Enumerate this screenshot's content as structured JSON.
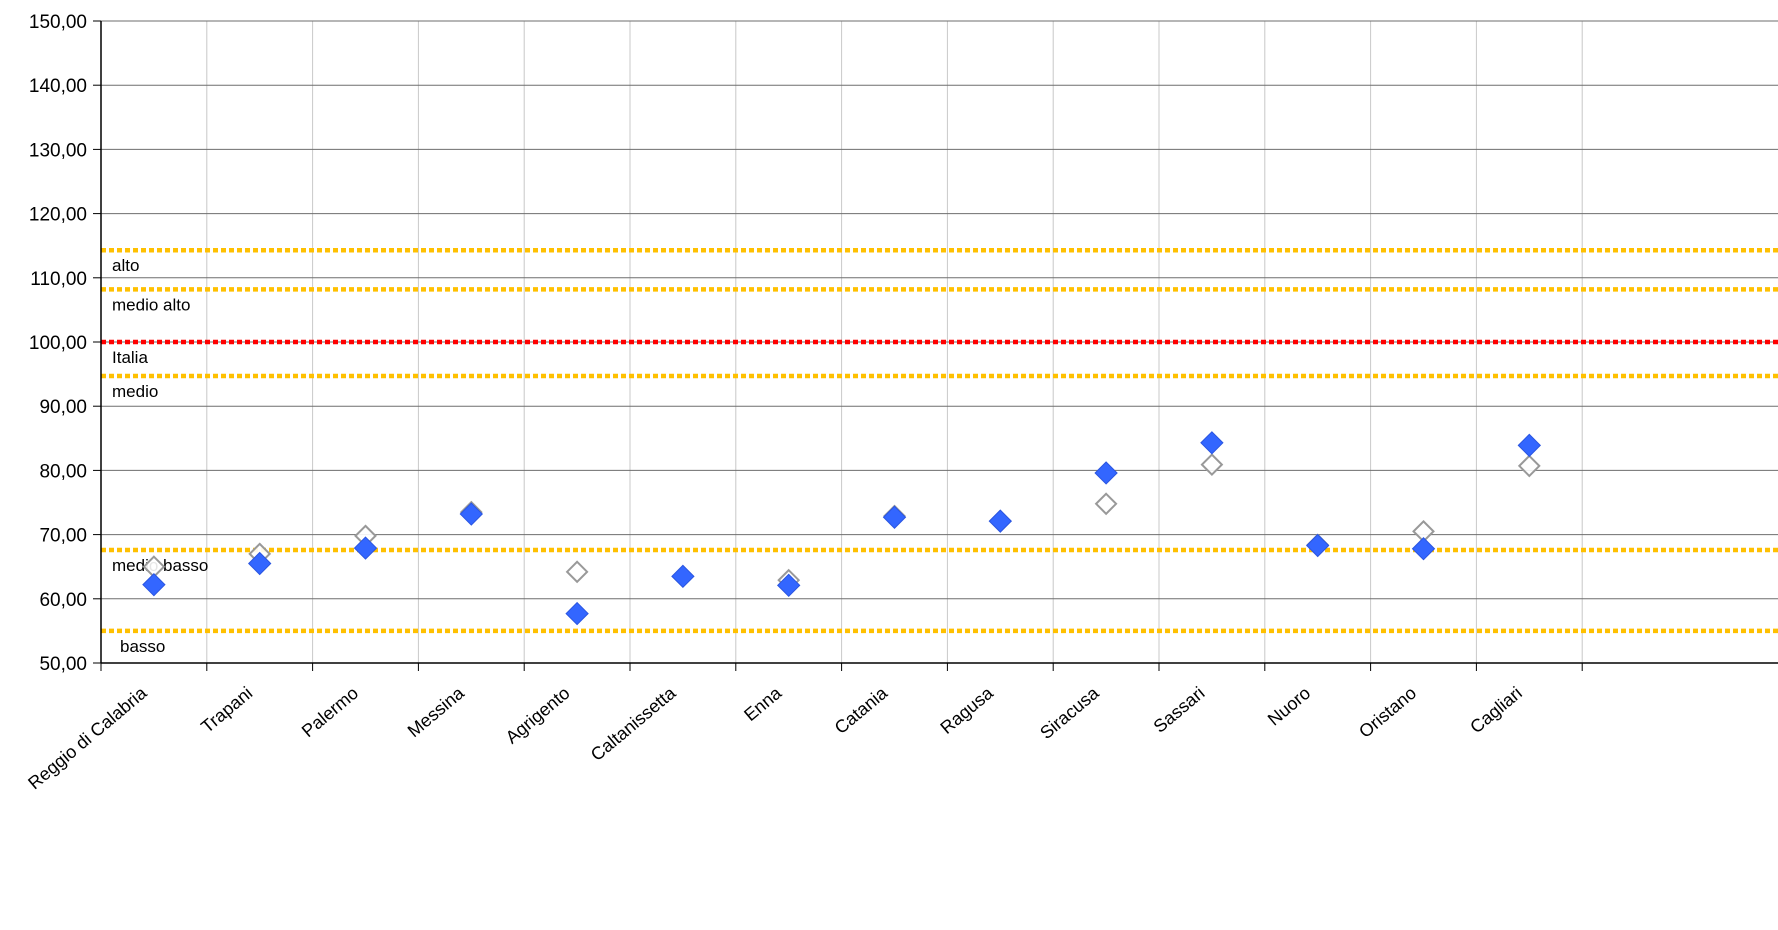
{
  "chart_data": {
    "type": "scatter",
    "categories": [
      "Reggio di Calabria",
      "Trapani",
      "Palermo",
      "Messina",
      "Agrigento",
      "Caltanissetta",
      "Enna",
      "Catania",
      "Ragusa",
      "Siracusa",
      "Sassari",
      "Nuoro",
      "Oristano",
      "Cagliari"
    ],
    "ylim": [
      50,
      150
    ],
    "yticks": [
      "50,00",
      "60,00",
      "70,00",
      "80,00",
      "90,00",
      "100,00",
      "110,00",
      "120,00",
      "130,00",
      "140,00",
      "150,00"
    ],
    "ytick_values": [
      50,
      60,
      70,
      80,
      90,
      100,
      110,
      120,
      130,
      140,
      150
    ],
    "grid": true,
    "series": [
      {
        "marker": "filled-diamond",
        "color": "#3366ff",
        "values": [
          62.2,
          65.5,
          67.9,
          73.2,
          57.7,
          63.5,
          62.1,
          72.7,
          72.1,
          79.6,
          84.3,
          68.3,
          67.8,
          83.9
        ]
      },
      {
        "marker": "hollow-diamond",
        "color": "#999999",
        "values": [
          65.0,
          67.0,
          69.8,
          73.5,
          64.2,
          63.5,
          62.9,
          72.9,
          72.1,
          74.8,
          80.9,
          68.4,
          70.5,
          80.7
        ]
      }
    ],
    "reference_lines": [
      {
        "label": "alto",
        "value": 114.3,
        "color": "#ffc000"
      },
      {
        "label": "medio alto",
        "value": 108.2,
        "color": "#ffc000"
      },
      {
        "label": "Italia",
        "value": 100.0,
        "color": "#ff0000"
      },
      {
        "label": "medio",
        "value": 94.7,
        "color": "#ffc000"
      },
      {
        "label": "medio basso",
        "value": 67.6,
        "color": "#ffc000"
      },
      {
        "label": "basso",
        "value": 55.0,
        "color": "#ffc000"
      }
    ]
  }
}
